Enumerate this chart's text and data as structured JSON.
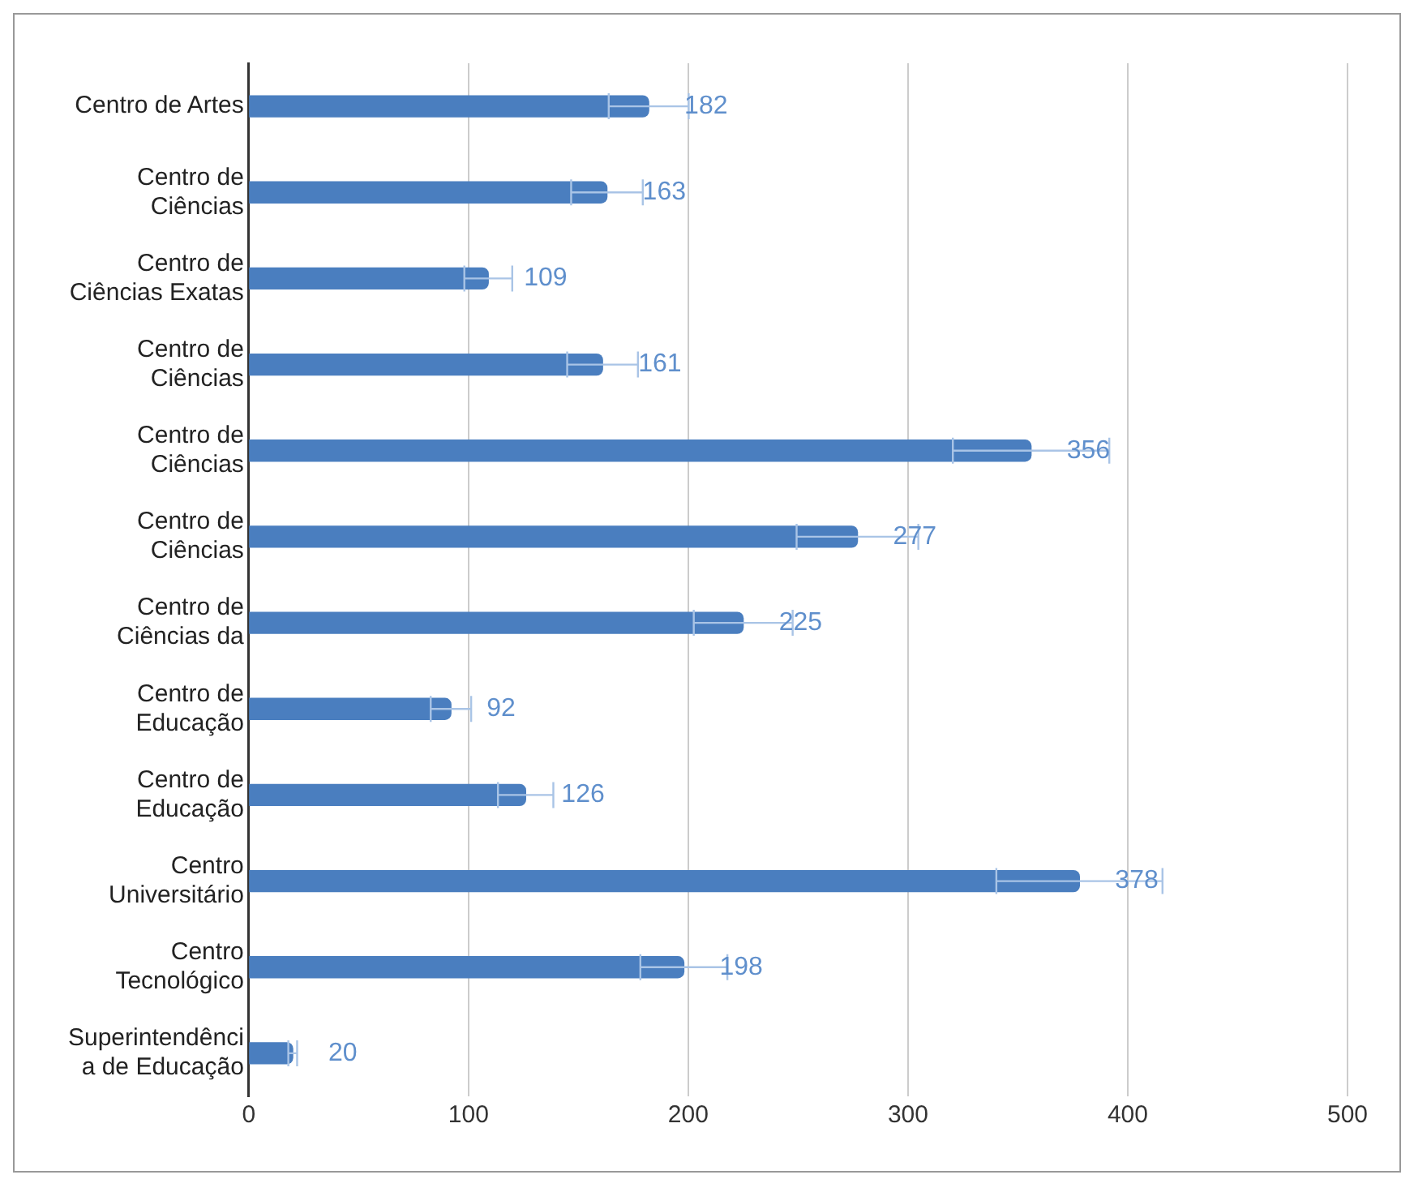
{
  "chart_data": {
    "type": "bar",
    "orientation": "horizontal",
    "categories": [
      "Centro de Artes",
      "Centro de\nCiências",
      "Centro de\nCiências Exatas",
      "Centro de\nCiências",
      "Centro de\nCiências",
      "Centro de\nCiências",
      "Centro de\nCiências da",
      "Centro de\nEducação",
      "Centro de\nEducação",
      "Centro\nUniversitário",
      "Centro\nTecnológico",
      "Superintendênci\na de Educação"
    ],
    "values": [
      182,
      163,
      109,
      161,
      356,
      277,
      225,
      92,
      126,
      378,
      198,
      20
    ],
    "errors": [
      18.2,
      16.3,
      10.9,
      16.1,
      35.6,
      27.7,
      22.5,
      9.2,
      12.6,
      37.8,
      19.8,
      2
    ],
    "color": "#4a7ebf",
    "xlim": [
      0,
      500
    ],
    "xticks": [
      0,
      100,
      200,
      300,
      400,
      500
    ],
    "grid": "x",
    "legend": false,
    "data_labels": true
  }
}
